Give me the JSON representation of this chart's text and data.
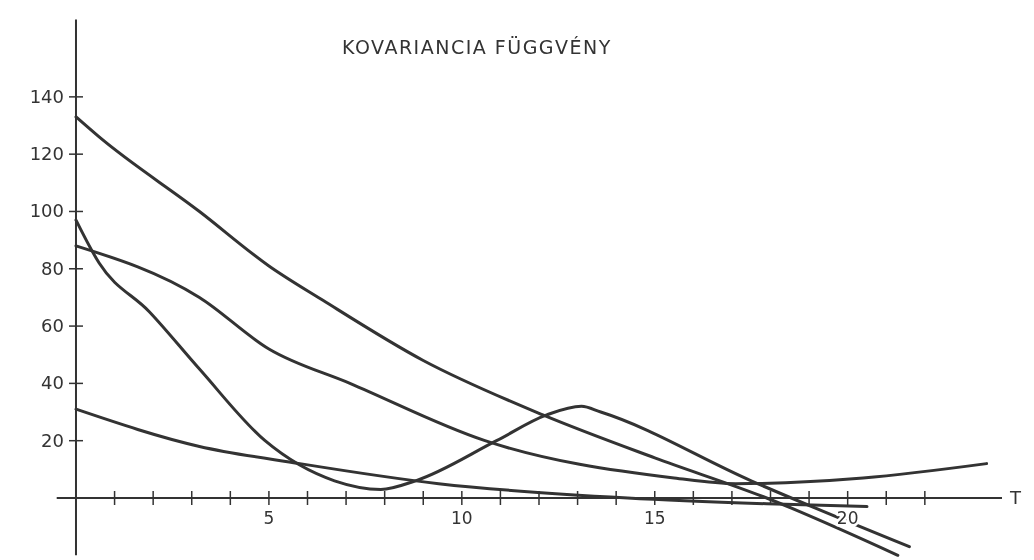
{
  "chart_data": {
    "type": "line",
    "title": "KOVARIANCIA FÜGGVÉNY",
    "xlabel": "T",
    "xlim": [
      -0.5,
      24
    ],
    "ylim": [
      -20,
      167
    ],
    "xticks": [
      {
        "value": 1,
        "label": null
      },
      {
        "value": 2,
        "label": null
      },
      {
        "value": 3,
        "label": null
      },
      {
        "value": 4,
        "label": null
      },
      5,
      {
        "value": 6,
        "label": null
      },
      {
        "value": 7,
        "label": null
      },
      {
        "value": 8,
        "label": null
      },
      {
        "value": 9,
        "label": null
      },
      10,
      {
        "value": 11,
        "label": null
      },
      {
        "value": 12,
        "label": null
      },
      {
        "value": 13,
        "label": null
      },
      {
        "value": 14,
        "label": null
      },
      15,
      {
        "value": 16,
        "label": null
      },
      {
        "value": 17,
        "label": null
      },
      {
        "value": 18,
        "label": null
      },
      {
        "value": 19,
        "label": null
      },
      20,
      {
        "value": 21,
        "label": null
      },
      {
        "value": 22,
        "label": null
      }
    ],
    "yticks": [
      20,
      40,
      60,
      80,
      100,
      120,
      140
    ],
    "series": [
      {
        "color": "#333333",
        "x": [
          0,
          0.6,
          3.2,
          5,
          6.4,
          9,
          12.1,
          15,
          17.9,
          21.3
        ],
        "values": [
          133,
          126,
          100,
          81,
          69,
          48,
          29,
          14,
          0,
          -20
        ]
      },
      {
        "color": "#333333",
        "x": [
          0,
          3.2,
          5,
          7.1,
          10.6,
          15.5,
          17.1,
          20.4,
          23.6
        ],
        "values": [
          88,
          70,
          52,
          40,
          20,
          7,
          5,
          7,
          12
        ]
      },
      {
        "color": "#333333",
        "x": [
          0,
          0.6,
          1.9,
          3.2,
          4.9,
          6.7,
          7.9,
          8.8,
          10.9,
          12.2,
          13.1,
          13.6,
          17.5,
          21.6
        ],
        "values": [
          97,
          82,
          65,
          45,
          20,
          6,
          3,
          6,
          20,
          29,
          32,
          30,
          6,
          -17
        ]
      },
      {
        "color": "#333333",
        "x": [
          0,
          3.2,
          5.8,
          9.4,
          14.3,
          17.9,
          20.5
        ],
        "values": [
          31,
          18,
          12,
          5,
          0,
          -2,
          -3
        ]
      }
    ]
  }
}
